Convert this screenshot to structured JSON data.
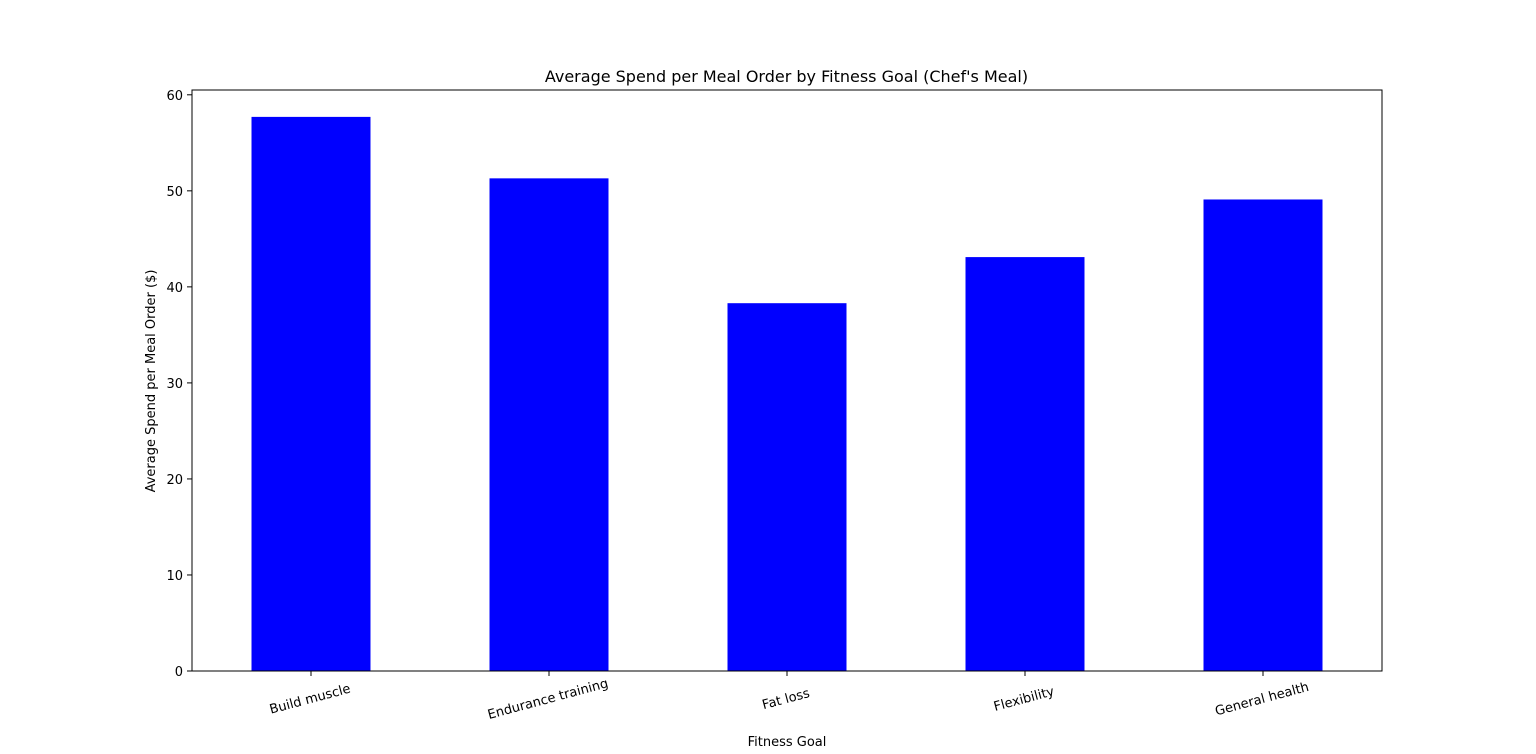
{
  "chart_data": {
    "type": "bar",
    "title": "Average Spend per Meal Order by Fitness Goal (Chef's Meal)",
    "xlabel": "Fitness Goal",
    "ylabel": "Average Spend per Meal Order ($)",
    "categories": [
      "Build muscle",
      "Endurance training",
      "Fat loss",
      "Flexibility",
      "General health"
    ],
    "values": [
      57.7,
      51.3,
      38.3,
      43.1,
      49.1
    ],
    "ylim": [
      0,
      60.5
    ],
    "yticks": [
      0,
      10,
      20,
      30,
      40,
      50,
      60
    ],
    "bar_color": "#0000ff",
    "grid": false,
    "legend": "none"
  }
}
